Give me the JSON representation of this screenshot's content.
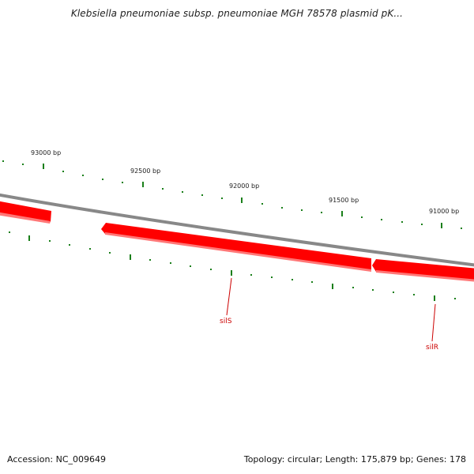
{
  "title": "Klebsiella pneumoniae subsp. pneumoniae MGH 78578 plasmid pK...",
  "accession": "Accession: NC_009649",
  "summary": "Topology: circular; Length: 175,879 bp; Genes: 178",
  "position_labels": [
    "93000 bp",
    "92500 bp",
    "92000 bp",
    "91500 bp",
    "91000 bp"
  ],
  "genes": [
    {
      "name": "silS",
      "color": "#cc0000"
    },
    {
      "name": "silR",
      "color": "#cc0000"
    }
  ],
  "colors": {
    "backbone": "#888888",
    "gene_fill": "#ff0000",
    "gene_edge": "#ff6666",
    "tick": "#1a7f1a",
    "label": "#cc0000"
  }
}
